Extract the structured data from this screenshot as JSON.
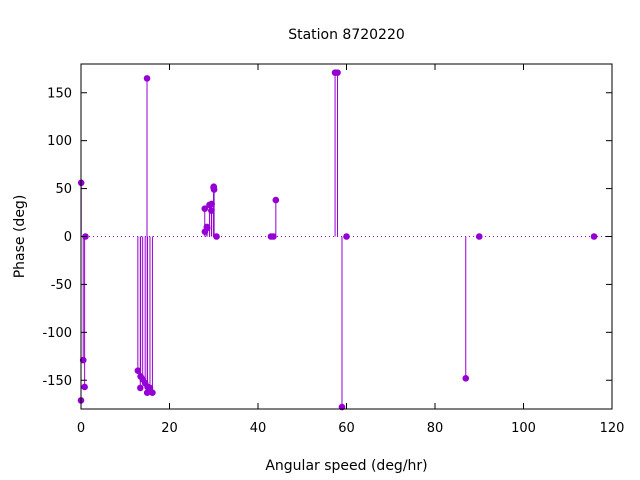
{
  "chart_data": {
    "type": "scatter",
    "style": "impulse (stem) plot",
    "title": "Station 8720220",
    "xlabel": "Angular speed (deg/hr)",
    "ylabel": "Phase (deg)",
    "xlim": [
      0,
      120
    ],
    "ylim": [
      -180,
      180
    ],
    "xticks": [
      0,
      20,
      40,
      60,
      80,
      100,
      120
    ],
    "yticks": [
      -150,
      -100,
      -50,
      0,
      50,
      100,
      150
    ],
    "zero_line": "dotted",
    "grid": false,
    "color": "#9400d3",
    "points": [
      {
        "x": 0.0,
        "y": -171
      },
      {
        "x": 0.04,
        "y": 56
      },
      {
        "x": 0.5,
        "y": -129
      },
      {
        "x": 0.82,
        "y": -157
      },
      {
        "x": 1.0,
        "y": 0
      },
      {
        "x": 12.85,
        "y": -140
      },
      {
        "x": 13.4,
        "y": -158
      },
      {
        "x": 13.47,
        "y": -146
      },
      {
        "x": 13.94,
        "y": -149
      },
      {
        "x": 14.5,
        "y": -153
      },
      {
        "x": 14.92,
        "y": 165
      },
      {
        "x": 14.96,
        "y": -163
      },
      {
        "x": 15.04,
        "y": -157
      },
      {
        "x": 15.59,
        "y": -158
      },
      {
        "x": 16.14,
        "y": -163
      },
      {
        "x": 27.97,
        "y": 29
      },
      {
        "x": 28.0,
        "y": 5
      },
      {
        "x": 28.43,
        "y": 10
      },
      {
        "x": 28.51,
        "y": 9
      },
      {
        "x": 29.03,
        "y": 33
      },
      {
        "x": 29.46,
        "y": 27
      },
      {
        "x": 29.53,
        "y": 34
      },
      {
        "x": 29.96,
        "y": 51
      },
      {
        "x": 30.0,
        "y": 52
      },
      {
        "x": 30.08,
        "y": 49
      },
      {
        "x": 30.63,
        "y": 0
      },
      {
        "x": 42.93,
        "y": 0
      },
      {
        "x": 43.48,
        "y": 0
      },
      {
        "x": 44.03,
        "y": 38
      },
      {
        "x": 57.42,
        "y": 171
      },
      {
        "x": 57.97,
        "y": 171
      },
      {
        "x": 58.98,
        "y": -178
      },
      {
        "x": 60.0,
        "y": 0
      },
      {
        "x": 86.95,
        "y": -148
      },
      {
        "x": 90.0,
        "y": 0
      },
      {
        "x": 115.94,
        "y": 0
      }
    ]
  }
}
